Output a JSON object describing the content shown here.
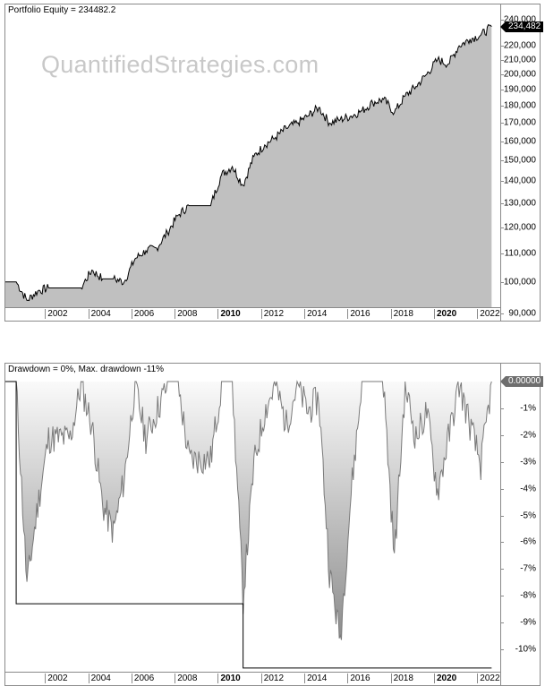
{
  "equity_panel": {
    "title": "Portfolio Equity = 234482.2",
    "watermark": "QuantifiedStrategies.com",
    "last_value_flag": "234,482",
    "y_ticks": [
      "240,000",
      "220,000",
      "210,000",
      "200,000",
      "190,000",
      "180,000",
      "170,000",
      "160,000",
      "150,000",
      "140,000",
      "130,000",
      "120,000",
      "110,000",
      "100,000",
      "90,000"
    ],
    "x_ticks": [
      {
        "label": "2002",
        "bold": false
      },
      {
        "label": "2004",
        "bold": false
      },
      {
        "label": "2006",
        "bold": false
      },
      {
        "label": "2008",
        "bold": false
      },
      {
        "label": "2010",
        "bold": true
      },
      {
        "label": "2012",
        "bold": false
      },
      {
        "label": "2014",
        "bold": false
      },
      {
        "label": "2016",
        "bold": false
      },
      {
        "label": "2018",
        "bold": false
      },
      {
        "label": "2020",
        "bold": true
      },
      {
        "label": "2022",
        "bold": false
      }
    ]
  },
  "drawdown_panel": {
    "title": "Drawdown = 0%, Max. drawdown -11%",
    "last_value_flag": "0.00000",
    "y_ticks": [
      "-1%",
      "-2%",
      "-3%",
      "-4%",
      "-5%",
      "-6%",
      "-7%",
      "-8%",
      "-9%",
      "-10%"
    ],
    "x_ticks": [
      {
        "label": "2002",
        "bold": false
      },
      {
        "label": "2004",
        "bold": false
      },
      {
        "label": "2006",
        "bold": false
      },
      {
        "label": "2008",
        "bold": false
      },
      {
        "label": "2010",
        "bold": true
      },
      {
        "label": "2012",
        "bold": false
      },
      {
        "label": "2014",
        "bold": false
      },
      {
        "label": "2016",
        "bold": false
      },
      {
        "label": "2018",
        "bold": false
      },
      {
        "label": "2020",
        "bold": true
      },
      {
        "label": "2022",
        "bold": false
      }
    ]
  },
  "chart_data": [
    {
      "type": "area",
      "title": "Portfolio Equity = 234482.2",
      "xlabel": "",
      "ylabel": "",
      "x": [
        2000.0,
        2000.5,
        2001.0,
        2001.5,
        2002.0,
        2002.5,
        2003.0,
        2003.5,
        2004.0,
        2004.5,
        2005.0,
        2005.5,
        2006.0,
        2006.5,
        2007.0,
        2007.5,
        2008.0,
        2008.5,
        2009.0,
        2009.5,
        2010.0,
        2010.5,
        2011.0,
        2011.5,
        2012.0,
        2012.5,
        2013.0,
        2013.5,
        2014.0,
        2014.5,
        2015.0,
        2015.5,
        2016.0,
        2016.5,
        2017.0,
        2017.5,
        2018.0,
        2018.5,
        2019.0,
        2019.5,
        2020.0,
        2020.5,
        2021.0,
        2021.5,
        2022.0,
        2022.5
      ],
      "values": [
        100000,
        100000,
        94000,
        97000,
        98000,
        98000,
        98000,
        98000,
        104000,
        101000,
        101000,
        100000,
        108000,
        111000,
        112000,
        118000,
        125000,
        129000,
        129000,
        129000,
        143000,
        147000,
        138000,
        152000,
        158000,
        162000,
        167000,
        170000,
        174000,
        179000,
        170000,
        172000,
        174000,
        177000,
        182000,
        184000,
        176000,
        186000,
        192000,
        200000,
        210000,
        207000,
        220000,
        225000,
        228000,
        234482
      ],
      "ylim": [
        90000,
        240000
      ],
      "y_ticks": [
        90000,
        100000,
        110000,
        120000,
        130000,
        140000,
        150000,
        160000,
        170000,
        180000,
        190000,
        200000,
        210000,
        220000,
        240000
      ],
      "x_tick_labels": [
        "2002",
        "2004",
        "2006",
        "2008",
        "2010",
        "2012",
        "2014",
        "2016",
        "2018",
        "2020",
        "2022"
      ],
      "last_value": 234482.2,
      "grid": false,
      "color": "#c0c0c0",
      "line_color": "#000000"
    },
    {
      "type": "area",
      "title": "Drawdown = 0%, Max. drawdown -11%",
      "xlabel": "",
      "ylabel": "",
      "x": [
        2000.0,
        2000.5,
        2001.0,
        2001.5,
        2002.0,
        2002.5,
        2003.0,
        2003.5,
        2004.0,
        2004.5,
        2005.0,
        2005.5,
        2006.0,
        2006.5,
        2007.0,
        2007.5,
        2008.0,
        2008.5,
        2009.0,
        2009.5,
        2010.0,
        2010.5,
        2011.0,
        2011.5,
        2012.0,
        2012.5,
        2013.0,
        2013.5,
        2014.0,
        2014.5,
        2015.0,
        2015.5,
        2016.0,
        2016.5,
        2017.0,
        2017.5,
        2018.0,
        2018.5,
        2019.0,
        2019.5,
        2020.0,
        2020.5,
        2021.0,
        2021.5,
        2022.0,
        2022.5
      ],
      "values": [
        0,
        0,
        -7.5,
        -4.5,
        -2.0,
        -2.0,
        -2.0,
        0,
        -1.5,
        -4.5,
        -5.5,
        -3.5,
        0,
        -2.0,
        -1.0,
        0,
        0,
        -2.8,
        -2.8,
        -2.8,
        0,
        0,
        -8.0,
        -3.0,
        -1.0,
        0,
        -1.5,
        0,
        -1.0,
        -0.5,
        -7.0,
        -9.5,
        -4.0,
        0,
        0,
        0,
        -6.5,
        0,
        -2.0,
        -1.0,
        -4.0,
        -2.0,
        0,
        -1.5,
        -3.0,
        0
      ],
      "max_drawdown_line": [
        {
          "x_start": 2000.5,
          "x_end": 2011.0,
          "value": -8.3
        },
        {
          "x_start": 2011.0,
          "x_end": 2022.5,
          "value": -10.7
        }
      ],
      "ylim": [
        -11,
        0
      ],
      "y_ticks": [
        0,
        -1,
        -2,
        -3,
        -4,
        -5,
        -6,
        -7,
        -8,
        -9,
        -10
      ],
      "x_tick_labels": [
        "2002",
        "2004",
        "2006",
        "2008",
        "2010",
        "2012",
        "2014",
        "2016",
        "2018",
        "2020",
        "2022"
      ],
      "current_drawdown": 0,
      "max_drawdown": -11,
      "grid": false
    }
  ]
}
